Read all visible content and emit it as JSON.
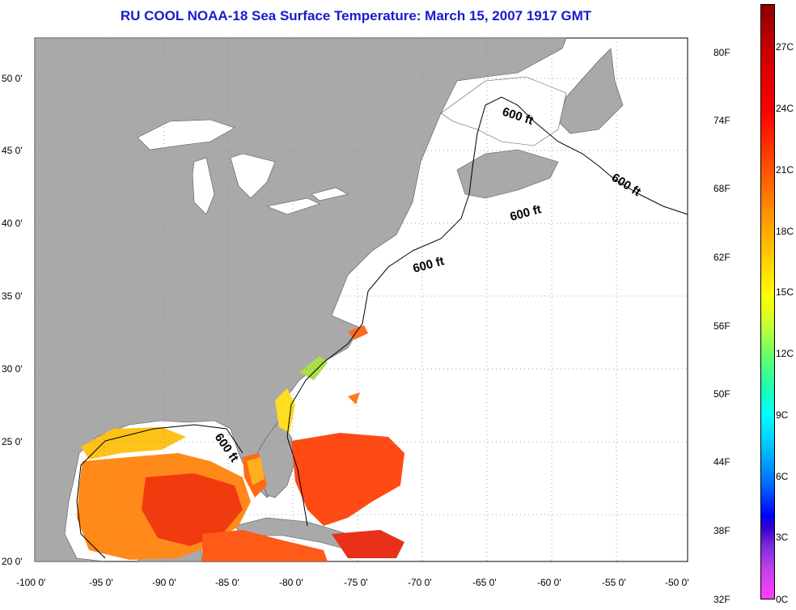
{
  "title": "RU COOL  NOAA-18  Sea Surface Temperature:  March 15, 2007 1917 GMT",
  "map": {
    "lon_labels": [
      "-100 0'",
      "-95 0'",
      "-90 0'",
      "-85 0'",
      "-80 0'",
      "-75 0'",
      "-70 0'",
      "-65 0'",
      "-60 0'",
      "-55 0'",
      "-50 0'"
    ],
    "lat_labels": [
      "50 0'",
      "45 0'",
      "40 0'",
      "35 0'",
      "30 0'",
      "25 0'",
      "20 0'"
    ],
    "contour_label": "600 ft",
    "contour_label_count": 5,
    "colors": {
      "land": "#a9a9a9",
      "water": "#ffffff",
      "title": "#1a1acc"
    }
  },
  "colorbar": {
    "fahrenheit_labels": [
      "80F",
      "74F",
      "68F",
      "62F",
      "56F",
      "50F",
      "44F",
      "38F",
      "32F"
    ],
    "celsius_labels": [
      "27C",
      "24C",
      "21C",
      "18C",
      "15C",
      "12C",
      "9C",
      "6C",
      "3C",
      "0C"
    ]
  }
}
